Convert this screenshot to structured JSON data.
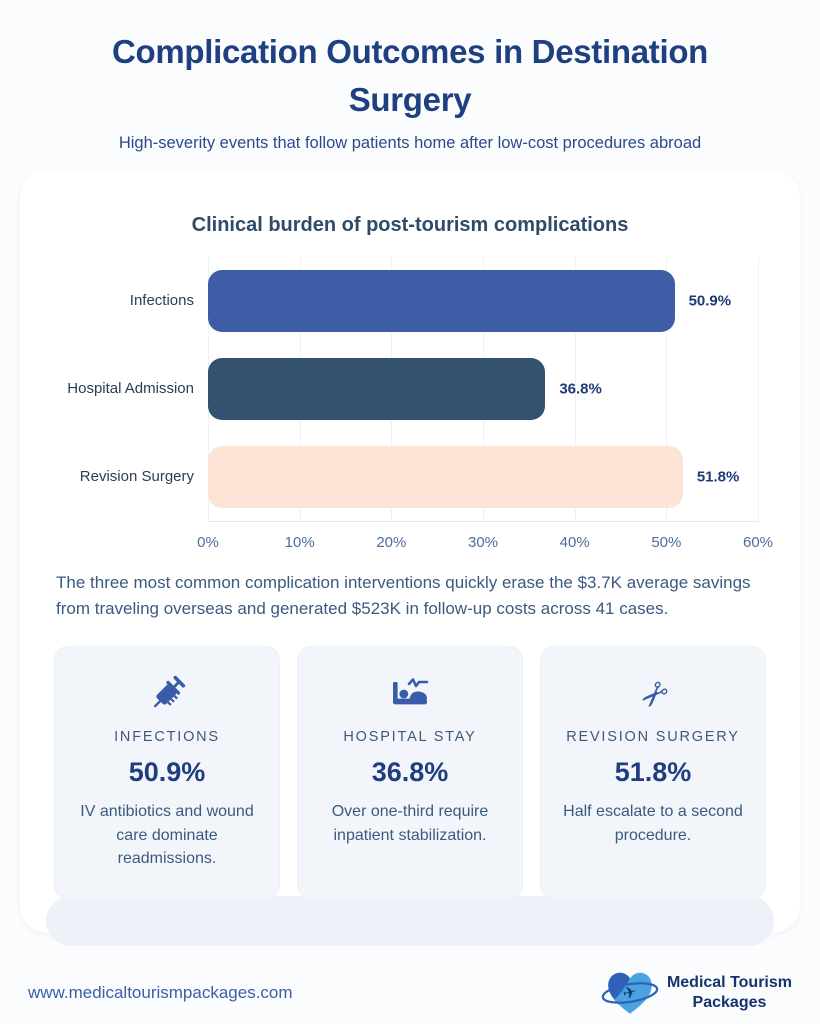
{
  "page": {
    "title": "Complication Outcomes in Destination Surgery",
    "subtitle": "High-severity events that follow patients home after low-cost procedures abroad"
  },
  "chart_data": {
    "type": "bar",
    "orientation": "horizontal",
    "title": "Clinical burden of post-tourism complications",
    "categories": [
      "Infections",
      "Hospital Admission",
      "Revision Surgery"
    ],
    "values": [
      50.9,
      36.8,
      51.8
    ],
    "value_labels": [
      "50.9%",
      "36.8%",
      "51.8%"
    ],
    "bar_colors": [
      "#3d5ea7",
      "#345270",
      "#fde4d7"
    ],
    "xlabel": "",
    "ylabel": "",
    "xlim": [
      0,
      60
    ],
    "x_ticks": [
      "0%",
      "10%",
      "20%",
      "30%",
      "40%",
      "50%",
      "60%"
    ],
    "grid": "vertical-gridlines",
    "legend": "none"
  },
  "insight": "The three most common complication interventions quickly erase the $3.7K average savings from traveling overseas and generated $523K in follow-up costs across 41 cases.",
  "stat_cards": [
    {
      "icon": "syringe-icon",
      "label": "INFECTIONS",
      "value": "50.9%",
      "description": "IV antibiotics and wound care dominate readmissions."
    },
    {
      "icon": "hospital-bed-icon",
      "label": "HOSPITAL STAY",
      "value": "36.8%",
      "description": "Over one-third require inpatient stabilization."
    },
    {
      "icon": "scissors-icon",
      "label": "REVISION SURGERY",
      "value": "51.8%",
      "description": "Half escalate to a second procedure."
    }
  ],
  "footer": {
    "website": "www.medicaltourismpackages.com",
    "brand_line1": "Medical Tourism",
    "brand_line2": "Packages"
  },
  "colors": {
    "accent_blue": "#3d5ea7",
    "dark_navy": "#345270",
    "peach": "#fde4d7",
    "title_blue": "#1f4080",
    "value_navy": "#1f3a78",
    "slate_text": "#3c5a80",
    "tick_text": "#4d6d99",
    "stat_card_bg": "#f2f6fa",
    "logo_light_blue": "#4aa3e0",
    "logo_dark_blue": "#2d62b8"
  }
}
